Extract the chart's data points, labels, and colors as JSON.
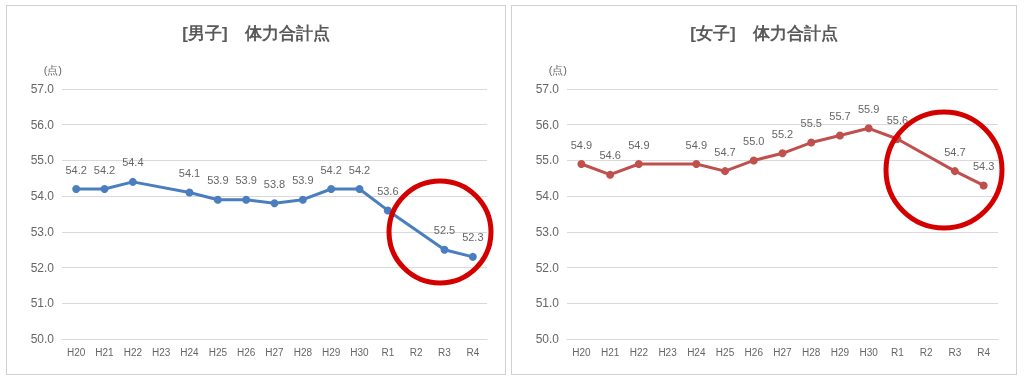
{
  "chart_data": [
    {
      "type": "line",
      "title": "[男子]　体力合計点",
      "ylabel": "(点)",
      "categories": [
        "H20",
        "H21",
        "H22",
        "H23",
        "H24",
        "H25",
        "H26",
        "H27",
        "H28",
        "H29",
        "H30",
        "R1",
        "R2",
        "R3",
        "R4"
      ],
      "series": [
        {
          "color": "#4a7ebf",
          "values": [
            54.2,
            54.2,
            54.4,
            null,
            54.1,
            53.9,
            53.9,
            53.8,
            53.9,
            54.2,
            54.2,
            53.6,
            null,
            52.5,
            52.3
          ],
          "value_labels": [
            "54.2",
            "54.2",
            "54.4",
            null,
            "54.1",
            "53.9",
            "53.9",
            "53.8",
            "53.9",
            "54.2",
            "54.2",
            "53.6",
            null,
            "52.5",
            "52.3"
          ]
        }
      ],
      "ylim": [
        50,
        57
      ],
      "yticks": [
        {
          "value": 50,
          "label": "50.0"
        },
        {
          "value": 51,
          "label": "51.0"
        },
        {
          "value": 52,
          "label": "52.0"
        },
        {
          "value": 53,
          "label": "53.0"
        },
        {
          "value": 54,
          "label": "54.0"
        },
        {
          "value": 55,
          "label": "55.0"
        },
        {
          "value": 56,
          "label": "56.0"
        },
        {
          "value": 57,
          "label": "57.0"
        }
      ],
      "grid": "y",
      "marker": "circle"
    },
    {
      "type": "line",
      "title": "[女子]　体力合計点",
      "ylabel": "(点)",
      "categories": [
        "H20",
        "H21",
        "H22",
        "H23",
        "H24",
        "H25",
        "H26",
        "H27",
        "H28",
        "H29",
        "H30",
        "R1",
        "R2",
        "R3",
        "R4"
      ],
      "series": [
        {
          "color": "#c0504d",
          "values": [
            54.9,
            54.6,
            54.9,
            null,
            54.9,
            54.7,
            55.0,
            55.2,
            55.5,
            55.7,
            55.9,
            55.6,
            null,
            54.7,
            54.3
          ],
          "value_labels": [
            "54.9",
            "54.6",
            "54.9",
            null,
            "54.9",
            "54.7",
            "55.0",
            "55.2",
            "55.5",
            "55.7",
            "55.9",
            "55.6",
            null,
            "54.7",
            "54.3"
          ]
        }
      ],
      "ylim": [
        50,
        57
      ],
      "yticks": [
        {
          "value": 50,
          "label": "50.0"
        },
        {
          "value": 51,
          "label": "51.0"
        },
        {
          "value": 52,
          "label": "52.0"
        },
        {
          "value": 53,
          "label": "53.0"
        },
        {
          "value": 54,
          "label": "54.0"
        },
        {
          "value": 55,
          "label": "55.0"
        },
        {
          "value": 56,
          "label": "56.0"
        },
        {
          "value": 57,
          "label": "57.0"
        }
      ],
      "grid": "y",
      "marker": "circle"
    }
  ]
}
